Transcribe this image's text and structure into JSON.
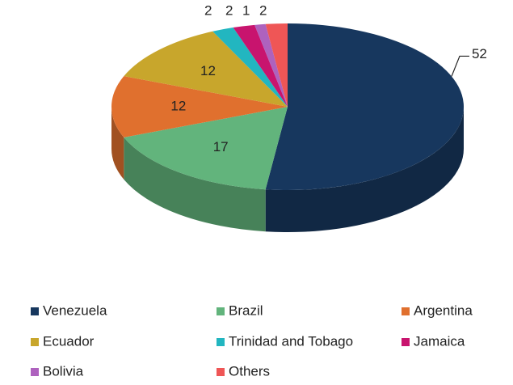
{
  "chart_data": {
    "type": "pie3d",
    "categories": [
      "Venezuela",
      "Brazil",
      "Argentina",
      "Ecuador",
      "Trinidad and Tobago",
      "Jamaica",
      "Bolivia",
      "Others"
    ],
    "values": [
      52,
      17,
      12,
      12,
      2,
      2,
      1,
      2
    ],
    "colors": [
      "#17375e",
      "#62b47c",
      "#e0702e",
      "#c8a62c",
      "#22b6c0",
      "#c8146e",
      "#ae62be",
      "#ef5656"
    ],
    "legend": "bottom"
  }
}
